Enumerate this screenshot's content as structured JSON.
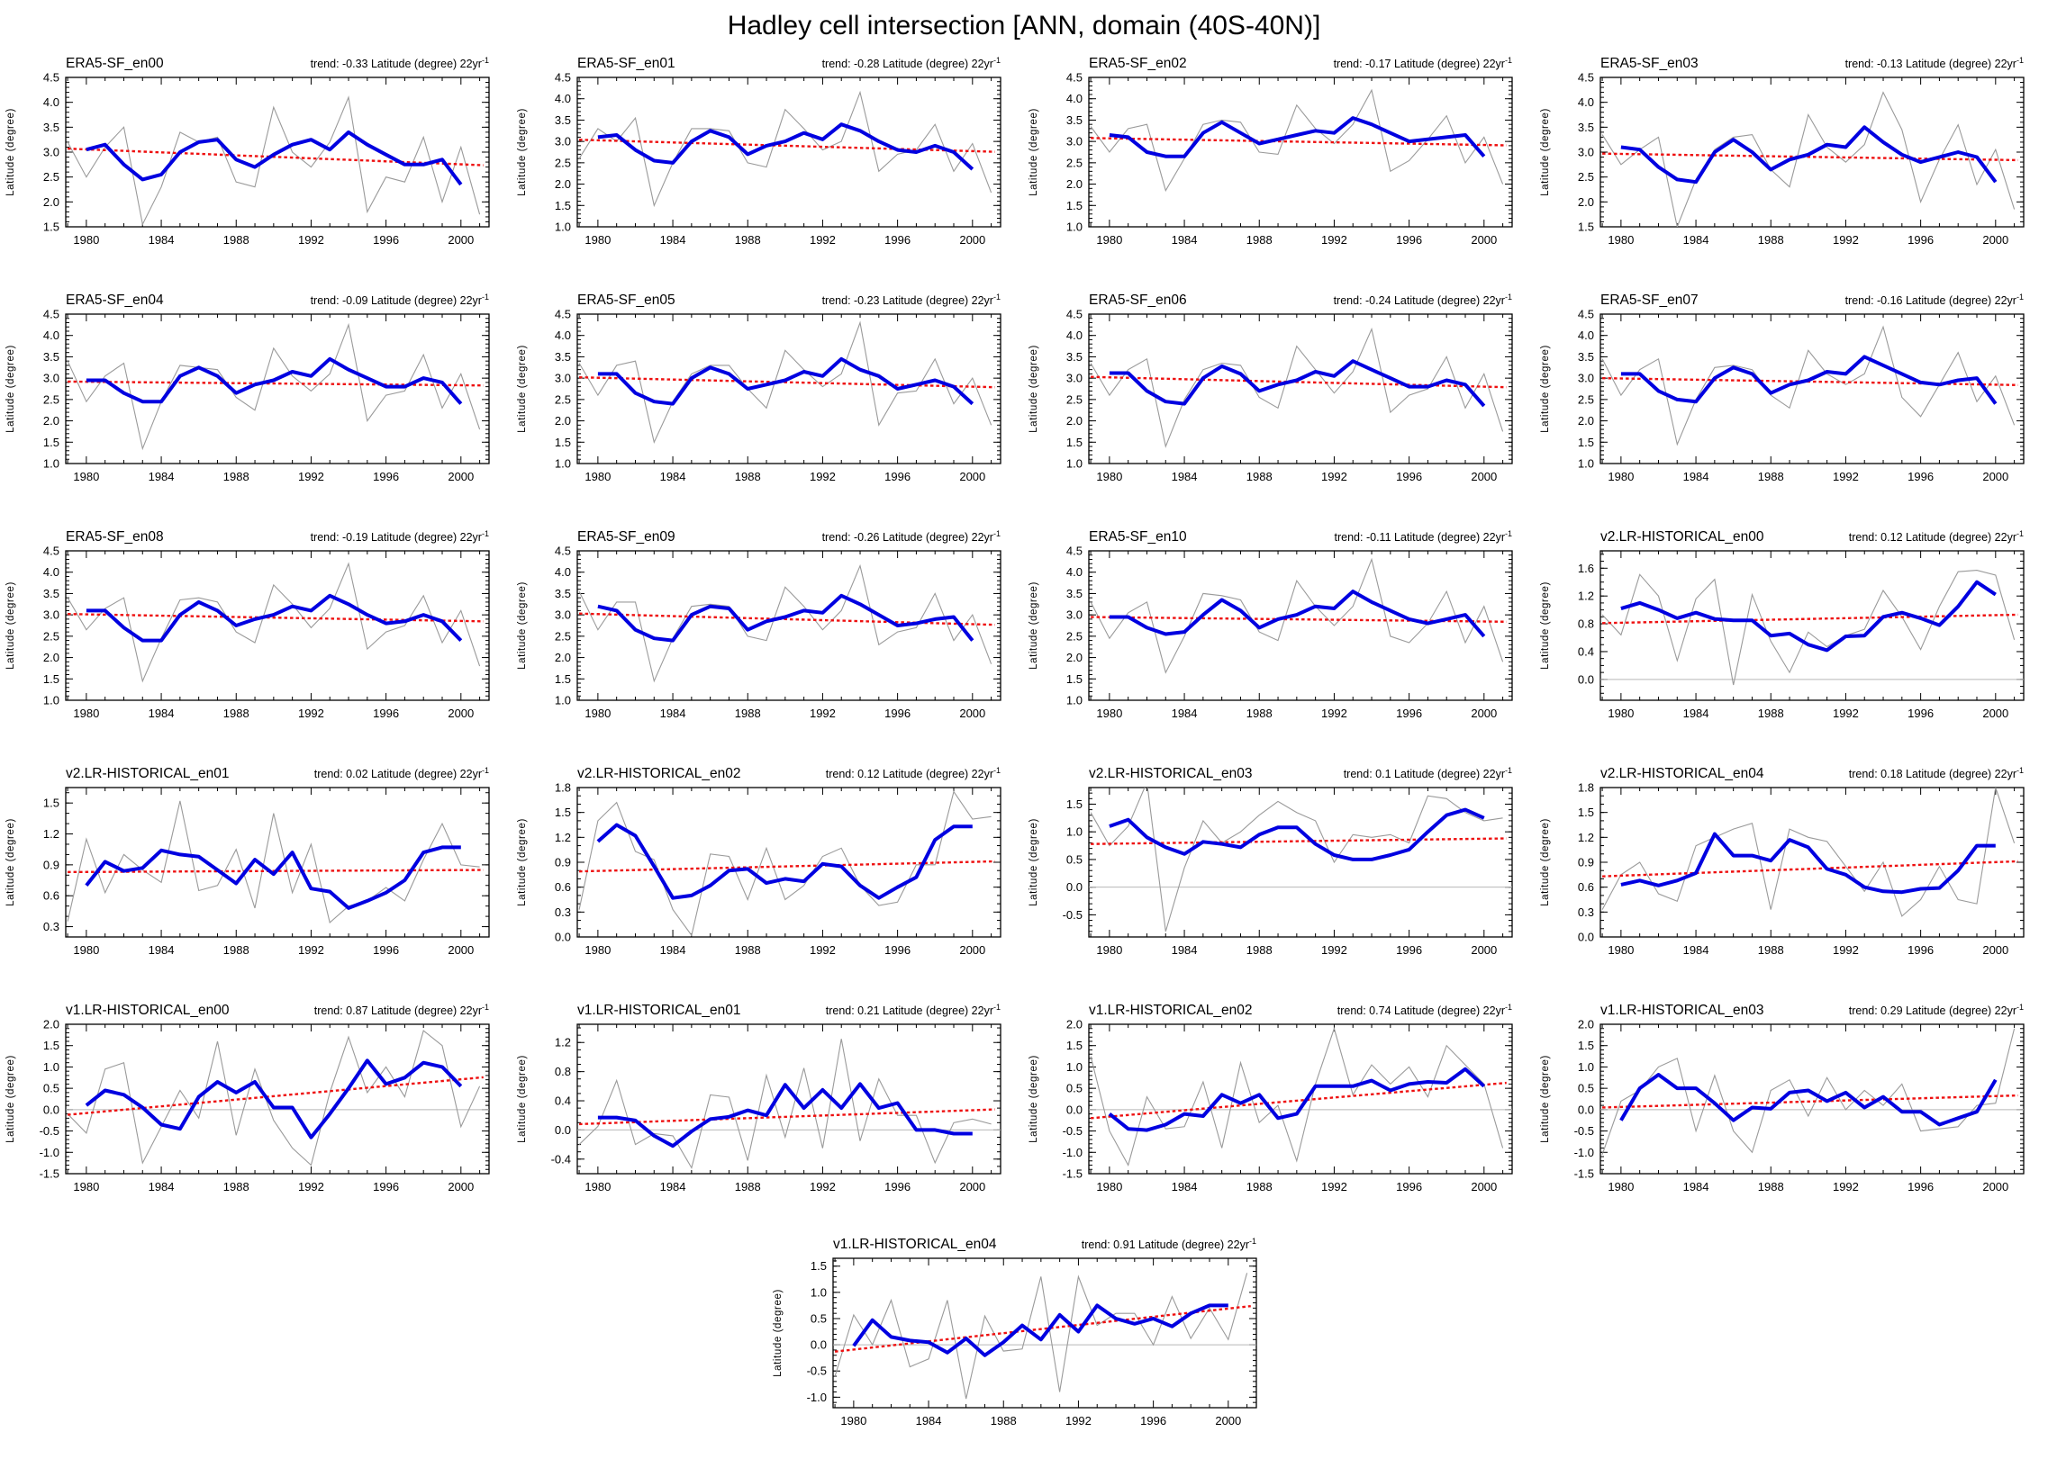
{
  "page": {
    "title": "Hadley cell intersection [ANN, domain (40S-40N)]"
  },
  "meta": {
    "ylabel": "Latitude (degree)",
    "trend_prefix": "trend:",
    "trend_suffix": "Latitude (degree) 22yr",
    "trend_sup": "-1",
    "x_start_year": 1979,
    "x_end_year": 2001,
    "xticks_major": [
      1980,
      1984,
      1988,
      1992,
      1996,
      2000
    ],
    "colors": {
      "annual_line": "#9a9a9a",
      "smoothed_line": "#0000e0",
      "trend_line": "#ee1010",
      "zero_line": "#b8b8b8",
      "axis": "#000000"
    }
  },
  "chart_data": [
    {
      "type": "line",
      "title": "ERA5-SF_en00",
      "trend": "-0.33",
      "ylim": [
        1.5,
        4.5
      ],
      "ystep": 0.5,
      "yminor": 0.1,
      "annual": [
        3.2,
        2.5,
        3.1,
        3.5,
        1.55,
        2.3,
        3.4,
        3.2,
        3.3,
        2.4,
        2.3,
        3.9,
        3.0,
        2.7,
        3.2,
        4.1,
        1.8,
        2.5,
        2.4,
        3.3,
        2.0,
        3.1,
        1.75
      ],
      "smoothed": [
        3.05,
        3.15,
        2.75,
        2.45,
        2.55,
        3.0,
        3.2,
        3.25,
        2.85,
        2.7,
        2.95,
        3.15,
        3.25,
        3.05,
        3.4,
        3.15,
        2.95,
        2.75,
        2.75,
        2.85,
        2.35
      ],
      "trend_line": [
        3.07,
        2.74
      ]
    },
    {
      "type": "line",
      "title": "ERA5-SF_en01",
      "trend": "-0.28",
      "ylim": [
        1.0,
        4.5
      ],
      "ystep": 0.5,
      "yminor": 0.1,
      "annual": [
        2.6,
        3.3,
        3.0,
        3.55,
        1.5,
        2.5,
        3.3,
        3.3,
        3.25,
        2.5,
        2.4,
        3.75,
        3.3,
        2.8,
        3.0,
        4.15,
        2.3,
        2.7,
        2.8,
        3.4,
        2.3,
        2.95,
        1.8
      ],
      "smoothed": [
        3.1,
        3.15,
        2.8,
        2.55,
        2.5,
        3.0,
        3.25,
        3.1,
        2.7,
        2.9,
        3.0,
        3.2,
        3.05,
        3.4,
        3.25,
        3.0,
        2.8,
        2.75,
        2.9,
        2.75,
        2.35
      ],
      "trend_line": [
        3.04,
        2.76
      ]
    },
    {
      "type": "line",
      "title": "ERA5-SF_en02",
      "trend": "-0.17",
      "ylim": [
        1.0,
        4.5
      ],
      "ystep": 0.5,
      "yminor": 0.1,
      "annual": [
        3.35,
        2.75,
        3.3,
        3.4,
        1.85,
        2.6,
        3.4,
        3.5,
        3.45,
        2.75,
        2.7,
        3.85,
        3.3,
        2.95,
        3.4,
        4.2,
        2.3,
        2.55,
        3.05,
        3.6,
        2.5,
        3.1,
        2.0
      ],
      "smoothed": [
        3.15,
        3.1,
        2.75,
        2.65,
        2.65,
        3.2,
        3.45,
        3.2,
        2.95,
        3.05,
        3.15,
        3.25,
        3.2,
        3.55,
        3.4,
        3.2,
        3.0,
        3.05,
        3.1,
        3.15,
        2.65
      ],
      "trend_line": [
        3.08,
        2.91
      ]
    },
    {
      "type": "line",
      "title": "ERA5-SF_en03",
      "trend": "-0.13",
      "ylim": [
        1.5,
        4.5
      ],
      "ystep": 0.5,
      "yminor": 0.1,
      "annual": [
        3.35,
        2.75,
        3.05,
        3.3,
        1.5,
        2.45,
        3.05,
        3.3,
        3.35,
        2.65,
        2.3,
        3.75,
        3.1,
        2.8,
        3.15,
        4.2,
        3.45,
        2.0,
        2.85,
        3.55,
        2.35,
        3.05,
        1.85
      ],
      "smoothed": [
        3.1,
        3.05,
        2.7,
        2.45,
        2.4,
        3.0,
        3.25,
        3.0,
        2.65,
        2.85,
        2.95,
        3.15,
        3.1,
        3.5,
        3.2,
        2.95,
        2.8,
        2.9,
        3.0,
        2.9,
        2.4
      ],
      "trend_line": [
        2.97,
        2.84
      ]
    },
    {
      "type": "line",
      "title": "ERA5-SF_en04",
      "trend": "-0.09",
      "ylim": [
        1.0,
        4.5
      ],
      "ystep": 0.5,
      "yminor": 0.1,
      "annual": [
        3.4,
        2.45,
        3.05,
        3.35,
        1.35,
        2.45,
        3.3,
        3.25,
        3.2,
        2.55,
        2.25,
        3.7,
        3.05,
        2.7,
        3.1,
        4.25,
        2.0,
        2.6,
        2.7,
        3.55,
        2.3,
        3.1,
        1.8
      ],
      "smoothed": [
        2.95,
        2.95,
        2.65,
        2.45,
        2.45,
        3.05,
        3.25,
        3.05,
        2.65,
        2.85,
        2.95,
        3.15,
        3.05,
        3.45,
        3.2,
        3.0,
        2.8,
        2.8,
        3.0,
        2.9,
        2.4
      ],
      "trend_line": [
        2.92,
        2.83
      ]
    },
    {
      "type": "line",
      "title": "ERA5-SF_en05",
      "trend": "-0.23",
      "ylim": [
        1.0,
        4.5
      ],
      "ystep": 0.5,
      "yminor": 0.1,
      "annual": [
        3.35,
        2.6,
        3.3,
        3.4,
        1.5,
        2.45,
        3.1,
        3.3,
        3.3,
        2.75,
        2.3,
        3.65,
        3.2,
        2.8,
        3.1,
        4.3,
        1.9,
        2.65,
        2.7,
        3.45,
        2.4,
        3.0,
        1.9
      ],
      "smoothed": [
        3.1,
        3.1,
        2.65,
        2.45,
        2.4,
        3.0,
        3.25,
        3.1,
        2.75,
        2.85,
        2.95,
        3.15,
        3.05,
        3.45,
        3.2,
        3.05,
        2.75,
        2.85,
        2.95,
        2.8,
        2.4
      ],
      "trend_line": [
        3.02,
        2.79
      ]
    },
    {
      "type": "line",
      "title": "ERA5-SF_en06",
      "trend": "-0.24",
      "ylim": [
        1.0,
        4.5
      ],
      "ystep": 0.5,
      "yminor": 0.1,
      "annual": [
        3.35,
        2.6,
        3.2,
        3.45,
        1.4,
        2.5,
        3.2,
        3.35,
        3.3,
        2.55,
        2.3,
        3.75,
        3.2,
        2.65,
        3.15,
        4.15,
        2.2,
        2.6,
        2.75,
        3.5,
        2.3,
        3.1,
        1.75
      ],
      "smoothed": [
        3.12,
        3.12,
        2.7,
        2.45,
        2.4,
        3.0,
        3.28,
        3.1,
        2.7,
        2.85,
        2.95,
        3.15,
        3.05,
        3.4,
        3.2,
        3.0,
        2.8,
        2.8,
        2.95,
        2.85,
        2.35
      ],
      "trend_line": [
        3.03,
        2.79
      ]
    },
    {
      "type": "line",
      "title": "ERA5-SF_en07",
      "trend": "-0.16",
      "ylim": [
        1.0,
        4.5
      ],
      "ystep": 0.5,
      "yminor": 0.1,
      "annual": [
        3.45,
        2.6,
        3.2,
        3.45,
        1.45,
        2.5,
        3.25,
        3.3,
        3.2,
        2.6,
        2.3,
        3.65,
        3.1,
        2.85,
        3.1,
        4.2,
        2.55,
        2.1,
        2.85,
        3.6,
        2.45,
        3.05,
        1.9
      ],
      "smoothed": [
        3.1,
        3.1,
        2.7,
        2.5,
        2.45,
        3.0,
        3.25,
        3.1,
        2.65,
        2.85,
        2.95,
        3.15,
        3.1,
        3.5,
        3.3,
        3.1,
        2.9,
        2.85,
        2.95,
        3.0,
        2.4
      ],
      "trend_line": [
        3.0,
        2.84
      ]
    },
    {
      "type": "line",
      "title": "ERA5-SF_en08",
      "trend": "-0.19",
      "ylim": [
        1.0,
        4.5
      ],
      "ystep": 0.5,
      "yminor": 0.1,
      "annual": [
        3.4,
        2.65,
        3.15,
        3.4,
        1.45,
        2.45,
        3.35,
        3.4,
        3.3,
        2.6,
        2.35,
        3.7,
        3.25,
        2.7,
        3.15,
        4.2,
        2.2,
        2.6,
        2.75,
        3.45,
        2.35,
        3.1,
        1.8
      ],
      "smoothed": [
        3.1,
        3.1,
        2.7,
        2.4,
        2.4,
        3.0,
        3.3,
        3.1,
        2.75,
        2.9,
        3.0,
        3.2,
        3.1,
        3.45,
        3.25,
        3.0,
        2.8,
        2.85,
        3.0,
        2.85,
        2.4
      ],
      "trend_line": [
        3.02,
        2.85
      ]
    },
    {
      "type": "line",
      "title": "ERA5-SF_en09",
      "trend": "-0.26",
      "ylim": [
        1.0,
        4.5
      ],
      "ystep": 0.5,
      "yminor": 0.1,
      "annual": [
        3.55,
        2.65,
        3.3,
        3.3,
        1.45,
        2.45,
        3.2,
        3.25,
        3.2,
        2.5,
        2.4,
        3.65,
        3.2,
        2.65,
        3.1,
        4.15,
        2.3,
        2.6,
        2.7,
        3.5,
        2.4,
        3.0,
        1.85
      ],
      "smoothed": [
        3.2,
        3.1,
        2.65,
        2.45,
        2.4,
        3.0,
        3.2,
        3.15,
        2.65,
        2.85,
        2.95,
        3.1,
        3.05,
        3.45,
        3.25,
        3.0,
        2.75,
        2.8,
        2.9,
        2.95,
        2.4
      ],
      "trend_line": [
        3.03,
        2.77
      ]
    },
    {
      "type": "line",
      "title": "ERA5-SF_en10",
      "trend": "-0.11",
      "ylim": [
        1.0,
        4.5
      ],
      "ystep": 0.5,
      "yminor": 0.1,
      "annual": [
        3.3,
        2.45,
        3.05,
        3.3,
        1.65,
        2.5,
        3.5,
        3.45,
        3.35,
        2.6,
        2.4,
        3.8,
        3.2,
        2.75,
        3.2,
        4.3,
        2.5,
        2.35,
        2.8,
        3.55,
        2.35,
        3.2,
        1.9
      ],
      "smoothed": [
        2.95,
        2.95,
        2.7,
        2.55,
        2.6,
        3.0,
        3.35,
        3.1,
        2.7,
        2.9,
        3.0,
        3.2,
        3.15,
        3.55,
        3.3,
        3.1,
        2.9,
        2.8,
        2.9,
        3.0,
        2.5
      ],
      "trend_line": [
        2.95,
        2.84
      ]
    },
    {
      "type": "line",
      "title": "v2.LR-HISTORICAL_en00",
      "trend": "0.12",
      "ylim": [
        -0.3,
        1.85
      ],
      "ystep": 0.4,
      "yminor": 0.1,
      "annual": [
        0.93,
        0.64,
        1.51,
        1.2,
        0.27,
        1.16,
        1.44,
        -0.08,
        1.22,
        0.55,
        0.1,
        0.68,
        0.47,
        0.63,
        0.72,
        1.28,
        0.9,
        0.43,
        1.05,
        1.55,
        1.57,
        1.5,
        0.57
      ],
      "smoothed": [
        1.02,
        1.1,
        1.0,
        0.88,
        0.96,
        0.87,
        0.85,
        0.85,
        0.63,
        0.66,
        0.5,
        0.42,
        0.62,
        0.63,
        0.9,
        0.96,
        0.88,
        0.78,
        1.05,
        1.4,
        1.22
      ],
      "trend_line": [
        0.81,
        0.93
      ]
    },
    {
      "type": "line",
      "title": "v2.LR-HISTORICAL_en01",
      "trend": "0.02",
      "ylim": [
        0.2,
        1.65
      ],
      "ystep": 0.3,
      "yminor": 0.1,
      "annual": [
        0.35,
        1.15,
        0.63,
        1.0,
        0.85,
        0.73,
        1.52,
        0.65,
        0.7,
        1.05,
        0.48,
        1.4,
        0.63,
        1.1,
        0.34,
        0.5,
        0.55,
        0.68,
        0.55,
        0.95,
        1.3,
        0.9,
        0.88
      ],
      "smoothed": [
        0.7,
        0.93,
        0.84,
        0.87,
        1.04,
        1.0,
        0.98,
        0.85,
        0.72,
        0.95,
        0.81,
        1.02,
        0.67,
        0.64,
        0.48,
        0.55,
        0.63,
        0.75,
        1.02,
        1.07,
        1.07
      ],
      "trend_line": [
        0.83,
        0.85
      ]
    },
    {
      "type": "line",
      "title": "v2.LR-HISTORICAL_en02",
      "trend": "0.12",
      "ylim": [
        0.0,
        1.8
      ],
      "ystep": 0.3,
      "yminor": 0.1,
      "annual": [
        0.33,
        1.4,
        1.62,
        1.03,
        0.93,
        0.33,
        0.02,
        1.0,
        0.97,
        0.45,
        1.07,
        0.45,
        0.62,
        0.97,
        1.07,
        0.62,
        0.38,
        0.42,
        0.87,
        0.87,
        1.75,
        1.42,
        1.45
      ],
      "smoothed": [
        1.15,
        1.35,
        1.22,
        0.85,
        0.47,
        0.5,
        0.62,
        0.8,
        0.82,
        0.65,
        0.7,
        0.67,
        0.88,
        0.85,
        0.62,
        0.47,
        0.6,
        0.72,
        1.17,
        1.33,
        1.33
      ],
      "trend_line": [
        0.79,
        0.91
      ]
    },
    {
      "type": "line",
      "title": "v2.LR-HISTORICAL_en03",
      "trend": "0.1",
      "ylim": [
        -0.9,
        1.8
      ],
      "ystep": 0.5,
      "yminor": 0.1,
      "annual": [
        1.35,
        0.75,
        1.1,
        1.9,
        -0.8,
        0.35,
        1.2,
        0.8,
        1.0,
        1.3,
        1.55,
        1.35,
        1.2,
        0.45,
        0.95,
        0.9,
        0.95,
        0.8,
        1.65,
        1.6,
        1.35,
        1.2,
        1.25
      ],
      "smoothed": [
        1.1,
        1.22,
        0.9,
        0.72,
        0.6,
        0.82,
        0.78,
        0.72,
        0.95,
        1.08,
        1.08,
        0.78,
        0.58,
        0.5,
        0.5,
        0.58,
        0.68,
        1.0,
        1.3,
        1.4,
        1.25
      ],
      "trend_line": [
        0.78,
        0.88
      ]
    },
    {
      "type": "line",
      "title": "v2.LR-HISTORICAL_en04",
      "trend": "0.18",
      "ylim": [
        0.0,
        1.8
      ],
      "ystep": 0.3,
      "yminor": 0.1,
      "annual": [
        0.33,
        0.75,
        0.9,
        0.52,
        0.43,
        1.1,
        1.2,
        1.3,
        1.37,
        0.33,
        1.3,
        1.2,
        1.15,
        0.85,
        0.55,
        0.9,
        0.25,
        0.45,
        0.85,
        0.45,
        0.4,
        1.8,
        1.13
      ],
      "smoothed": [
        0.63,
        0.68,
        0.62,
        0.68,
        0.77,
        1.24,
        0.98,
        0.98,
        0.92,
        1.17,
        1.08,
        0.82,
        0.75,
        0.6,
        0.55,
        0.54,
        0.58,
        0.59,
        0.8,
        1.1,
        1.1
      ],
      "trend_line": [
        0.73,
        0.91
      ]
    },
    {
      "type": "line",
      "title": "v1.LR-HISTORICAL_en00",
      "trend": "0.87",
      "ylim": [
        -1.5,
        2.0
      ],
      "ystep": 0.5,
      "yminor": 0.1,
      "annual": [
        -0.1,
        -0.55,
        0.95,
        1.1,
        -1.25,
        -0.4,
        0.45,
        -0.2,
        1.6,
        -0.6,
        0.95,
        -0.25,
        -0.9,
        -1.3,
        0.4,
        1.7,
        0.4,
        1.0,
        0.3,
        1.85,
        1.5,
        -0.4,
        0.55
      ],
      "smoothed": [
        0.1,
        0.45,
        0.35,
        0.05,
        -0.35,
        -0.45,
        0.3,
        0.65,
        0.4,
        0.65,
        0.05,
        0.05,
        -0.65,
        -0.1,
        0.5,
        1.15,
        0.6,
        0.75,
        1.1,
        1.0,
        0.55
      ],
      "trend_line": [
        -0.12,
        0.75
      ]
    },
    {
      "type": "line",
      "title": "v1.LR-HISTORICAL_en01",
      "trend": "0.21",
      "ylim": [
        -0.6,
        1.45
      ],
      "ystep": 0.4,
      "yminor": 0.1,
      "annual": [
        -0.2,
        0.05,
        0.68,
        -0.2,
        -0.05,
        -0.08,
        -0.52,
        0.48,
        0.45,
        -0.42,
        0.75,
        -0.1,
        0.85,
        -0.25,
        1.25,
        -0.15,
        0.7,
        0.2,
        0.2,
        -0.45,
        0.1,
        0.15,
        0.08
      ],
      "smoothed": [
        0.17,
        0.17,
        0.13,
        -0.08,
        -0.22,
        -0.02,
        0.15,
        0.18,
        0.27,
        0.2,
        0.62,
        0.3,
        0.55,
        0.3,
        0.63,
        0.3,
        0.37,
        0.0,
        0.0,
        -0.05,
        -0.05
      ],
      "trend_line": [
        0.08,
        0.28
      ]
    },
    {
      "type": "line",
      "title": "v1.LR-HISTORICAL_en02",
      "trend": "0.74",
      "ylim": [
        -1.5,
        2.0
      ],
      "ystep": 0.5,
      "yminor": 0.1,
      "annual": [
        1.25,
        -0.5,
        -1.3,
        0.3,
        -0.45,
        -0.4,
        0.65,
        -0.9,
        1.1,
        -0.3,
        0.1,
        -1.2,
        0.6,
        1.9,
        0.35,
        1.05,
        0.6,
        1.0,
        0.3,
        1.5,
        1.05,
        0.6,
        -0.9
      ],
      "smoothed": [
        -0.1,
        -0.45,
        -0.48,
        -0.35,
        -0.1,
        -0.15,
        0.35,
        0.15,
        0.35,
        -0.2,
        -0.1,
        0.55,
        0.55,
        0.55,
        0.68,
        0.45,
        0.6,
        0.65,
        0.63,
        0.95,
        0.55
      ],
      "trend_line": [
        -0.2,
        0.62
      ]
    },
    {
      "type": "line",
      "title": "v1.LR-HISTORICAL_en03",
      "trend": "0.29",
      "ylim": [
        -1.5,
        2.0
      ],
      "ystep": 0.5,
      "yminor": 0.1,
      "annual": [
        -1.05,
        0.2,
        0.45,
        1.0,
        1.2,
        -0.5,
        0.8,
        -0.5,
        -1.0,
        0.45,
        0.7,
        -0.15,
        0.75,
        0.0,
        0.45,
        0.1,
        0.6,
        -0.5,
        -0.45,
        -0.4,
        0.1,
        0.15,
        1.9
      ],
      "smoothed": [
        -0.25,
        0.5,
        0.82,
        0.5,
        0.5,
        0.15,
        -0.25,
        0.05,
        0.02,
        0.4,
        0.45,
        0.2,
        0.4,
        0.05,
        0.3,
        -0.05,
        -0.05,
        -0.35,
        -0.2,
        -0.05,
        0.7
      ],
      "trend_line": [
        0.05,
        0.33
      ]
    },
    {
      "type": "line",
      "title": "v1.LR-HISTORICAL_en04",
      "trend": "0.91",
      "ylim": [
        -1.2,
        1.65
      ],
      "ystep": 0.5,
      "yminor": 0.1,
      "annual": [
        -0.6,
        0.57,
        0.0,
        0.85,
        -0.42,
        -0.27,
        0.85,
        -1.03,
        0.55,
        -0.12,
        -0.08,
        1.3,
        -0.9,
        1.3,
        0.37,
        0.6,
        0.6,
        0.0,
        0.92,
        0.12,
        0.7,
        0.1,
        1.37
      ],
      "smoothed": [
        -0.02,
        0.47,
        0.15,
        0.08,
        0.05,
        -0.15,
        0.12,
        -0.2,
        0.05,
        0.37,
        0.1,
        0.57,
        0.25,
        0.75,
        0.5,
        0.4,
        0.5,
        0.35,
        0.6,
        0.75,
        0.75
      ],
      "trend_line": [
        -0.13,
        0.73
      ]
    }
  ]
}
